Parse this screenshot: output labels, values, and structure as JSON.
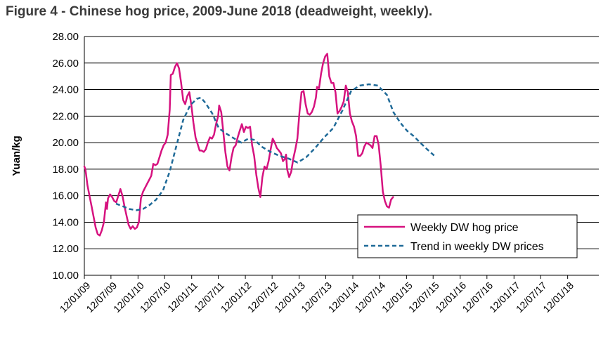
{
  "figure_title": "Figure 4 - Chinese hog price, 2009-June 2018 (deadweight, weekly).",
  "colors": {
    "weekly": "#d6127f",
    "trend": "#1f6a98",
    "grid": "#000000"
  },
  "chart_data": {
    "type": "line",
    "title": "Figure 4 - Chinese hog price, 2009-June 2018 (deadweight, weekly).",
    "ylabel": "Yuan/kg",
    "xlabel": "",
    "ylim": [
      10,
      28
    ],
    "xlim": [
      "12/01/09",
      "12/08/18"
    ],
    "grid": "horizontal",
    "legend_placement": "bottom-right",
    "y_ticks": [
      "10.00",
      "12.00",
      "14.00",
      "16.00",
      "18.00",
      "20.00",
      "22.00",
      "24.00",
      "26.00",
      "28.00"
    ],
    "x_ticks": [
      "12/01/09",
      "12/07/09",
      "12/01/10",
      "12/07/10",
      "12/01/11",
      "12/07/11",
      "12/01/12",
      "12/07/12",
      "12/01/13",
      "12/07/13",
      "12/01/14",
      "12/07/14",
      "12/01/15",
      "12/07/15",
      "12/01/16",
      "12/07/16",
      "12/01/17",
      "12/07/17",
      "12/01/18"
    ],
    "series": [
      {
        "name": "Weekly DW hog price",
        "style": "solid",
        "points": [
          [
            "12/01/09",
            18.2
          ],
          [
            "19/01/09",
            18.0
          ],
          [
            "02/02/09",
            16.8
          ],
          [
            "16/02/09",
            16.0
          ],
          [
            "02/03/09",
            15.2
          ],
          [
            "16/03/09",
            14.4
          ],
          [
            "30/03/09",
            13.6
          ],
          [
            "13/04/09",
            13.1
          ],
          [
            "27/04/09",
            13.0
          ],
          [
            "11/05/09",
            13.4
          ],
          [
            "25/05/09",
            14.0
          ],
          [
            "08/06/09",
            15.5
          ],
          [
            "15/06/09",
            15.0
          ],
          [
            "22/06/09",
            15.8
          ],
          [
            "06/07/09",
            16.1
          ],
          [
            "20/07/09",
            15.9
          ],
          [
            "03/08/09",
            15.6
          ],
          [
            "17/08/09",
            15.5
          ],
          [
            "31/08/09",
            16.0
          ],
          [
            "14/09/09",
            16.5
          ],
          [
            "28/09/09",
            16.0
          ],
          [
            "12/10/09",
            15.2
          ],
          [
            "26/10/09",
            14.5
          ],
          [
            "09/11/09",
            13.8
          ],
          [
            "23/11/09",
            13.5
          ],
          [
            "07/12/09",
            13.7
          ],
          [
            "21/12/09",
            13.5
          ],
          [
            "04/01/10",
            13.6
          ],
          [
            "18/01/10",
            14.0
          ],
          [
            "01/02/10",
            15.8
          ],
          [
            "15/02/10",
            16.3
          ],
          [
            "01/03/10",
            16.6
          ],
          [
            "15/03/10",
            16.9
          ],
          [
            "29/03/10",
            17.2
          ],
          [
            "12/04/10",
            17.5
          ],
          [
            "26/04/10",
            18.4
          ],
          [
            "10/05/10",
            18.3
          ],
          [
            "24/05/10",
            18.4
          ],
          [
            "07/06/10",
            18.9
          ],
          [
            "21/06/10",
            19.4
          ],
          [
            "05/07/10",
            19.8
          ],
          [
            "19/07/10",
            20.0
          ],
          [
            "02/08/10",
            20.6
          ],
          [
            "16/08/10",
            22.5
          ],
          [
            "23/08/10",
            25.1
          ],
          [
            "06/09/10",
            25.2
          ],
          [
            "20/09/10",
            25.7
          ],
          [
            "04/10/10",
            26.0
          ],
          [
            "18/10/10",
            25.6
          ],
          [
            "01/11/10",
            24.5
          ],
          [
            "15/11/10",
            23.2
          ],
          [
            "29/11/10",
            22.9
          ],
          [
            "13/12/10",
            23.5
          ],
          [
            "27/12/10",
            23.8
          ],
          [
            "10/01/11",
            22.8
          ],
          [
            "24/01/11",
            21.5
          ],
          [
            "07/02/11",
            20.4
          ],
          [
            "21/02/11",
            19.9
          ],
          [
            "07/03/11",
            19.4
          ],
          [
            "21/03/11",
            19.4
          ],
          [
            "04/04/11",
            19.3
          ],
          [
            "18/04/11",
            19.5
          ],
          [
            "02/05/11",
            20.0
          ],
          [
            "16/05/11",
            20.4
          ],
          [
            "30/05/11",
            20.3
          ],
          [
            "13/06/11",
            20.6
          ],
          [
            "27/06/11",
            21.4
          ],
          [
            "11/07/11",
            22.0
          ],
          [
            "18/07/11",
            22.8
          ],
          [
            "01/08/11",
            22.3
          ],
          [
            "15/08/11",
            20.8
          ],
          [
            "29/08/11",
            19.3
          ],
          [
            "12/09/11",
            18.2
          ],
          [
            "26/09/11",
            17.9
          ],
          [
            "10/10/11",
            18.9
          ],
          [
            "24/10/11",
            19.6
          ],
          [
            "07/11/11",
            19.8
          ],
          [
            "21/11/11",
            20.4
          ],
          [
            "05/12/11",
            20.9
          ],
          [
            "19/12/11",
            21.4
          ],
          [
            "02/01/12",
            20.8
          ],
          [
            "16/01/12",
            21.2
          ],
          [
            "30/01/12",
            21.1
          ],
          [
            "13/02/12",
            21.2
          ],
          [
            "27/02/12",
            19.8
          ],
          [
            "12/03/12",
            19.0
          ],
          [
            "26/03/12",
            17.6
          ],
          [
            "09/04/12",
            16.6
          ],
          [
            "23/04/12",
            15.9
          ],
          [
            "07/05/12",
            17.4
          ],
          [
            "21/05/12",
            18.2
          ],
          [
            "04/06/12",
            18.0
          ],
          [
            "18/06/12",
            18.6
          ],
          [
            "02/07/12",
            19.5
          ],
          [
            "16/07/12",
            20.3
          ],
          [
            "30/07/12",
            20.0
          ],
          [
            "13/08/12",
            19.6
          ],
          [
            "27/08/12",
            19.4
          ],
          [
            "10/09/12",
            19.2
          ],
          [
            "24/09/12",
            18.6
          ],
          [
            "08/10/12",
            18.8
          ],
          [
            "15/10/12",
            19.1
          ],
          [
            "22/10/12",
            18.0
          ],
          [
            "05/11/12",
            17.4
          ],
          [
            "19/11/12",
            17.8
          ],
          [
            "03/12/12",
            18.8
          ],
          [
            "17/12/12",
            19.5
          ],
          [
            "31/12/12",
            20.3
          ],
          [
            "14/01/13",
            22.3
          ],
          [
            "28/01/13",
            23.8
          ],
          [
            "11/02/13",
            23.9
          ],
          [
            "25/02/13",
            22.9
          ],
          [
            "11/03/13",
            22.2
          ],
          [
            "25/03/13",
            22.1
          ],
          [
            "08/04/13",
            22.3
          ],
          [
            "22/04/13",
            22.7
          ],
          [
            "06/05/13",
            23.4
          ],
          [
            "13/05/13",
            24.2
          ],
          [
            "27/05/13",
            24.1
          ],
          [
            "10/06/13",
            25.2
          ],
          [
            "24/06/13",
            26.0
          ],
          [
            "08/07/13",
            26.5
          ],
          [
            "22/07/13",
            26.7
          ],
          [
            "05/08/13",
            25.0
          ],
          [
            "19/08/13",
            24.5
          ],
          [
            "02/09/13",
            24.5
          ],
          [
            "16/09/13",
            23.8
          ],
          [
            "30/09/13",
            22.2
          ],
          [
            "14/10/13",
            22.4
          ],
          [
            "28/10/13",
            22.7
          ],
          [
            "11/11/13",
            23.1
          ],
          [
            "25/11/13",
            24.3
          ],
          [
            "09/12/13",
            23.8
          ],
          [
            "23/12/13",
            22.2
          ],
          [
            "06/01/14",
            21.6
          ],
          [
            "20/01/14",
            21.2
          ],
          [
            "03/02/14",
            20.5
          ],
          [
            "17/02/14",
            19.0
          ],
          [
            "03/03/14",
            19.0
          ],
          [
            "17/03/14",
            19.2
          ],
          [
            "31/03/14",
            19.7
          ],
          [
            "14/04/14",
            20.0
          ],
          [
            "28/04/14",
            19.9
          ],
          [
            "12/05/14",
            19.8
          ],
          [
            "26/05/14",
            19.6
          ],
          [
            "09/06/14",
            20.5
          ],
          [
            "23/06/14",
            20.5
          ],
          [
            "07/07/14",
            19.8
          ],
          [
            "21/07/14",
            18.2
          ],
          [
            "04/08/14",
            16.3
          ],
          [
            "18/08/14",
            15.6
          ],
          [
            "01/09/14",
            15.2
          ],
          [
            "15/09/14",
            15.1
          ],
          [
            "29/09/14",
            15.7
          ],
          [
            "13/10/14",
            15.9
          ]
        ]
      },
      {
        "name": "Trend in weekly DW prices",
        "style": "dashed",
        "points": [
          [
            "15/08/09",
            15.4
          ],
          [
            "01/10/09",
            15.2
          ],
          [
            "15/11/09",
            15.0
          ],
          [
            "01/01/10",
            14.9
          ],
          [
            "15/02/10",
            15.0
          ],
          [
            "01/04/10",
            15.3
          ],
          [
            "15/05/10",
            15.7
          ],
          [
            "01/07/10",
            16.4
          ],
          [
            "15/08/10",
            17.8
          ],
          [
            "01/10/10",
            19.8
          ],
          [
            "15/11/10",
            21.7
          ],
          [
            "01/01/11",
            22.8
          ],
          [
            "15/02/11",
            23.3
          ],
          [
            "15/03/11",
            23.4
          ],
          [
            "15/04/11",
            23.0
          ],
          [
            "01/06/11",
            22.2
          ],
          [
            "15/07/11",
            21.1
          ],
          [
            "01/09/11",
            20.7
          ],
          [
            "15/10/11",
            20.4
          ],
          [
            "15/12/11",
            20.0
          ],
          [
            "01/02/12",
            20.3
          ],
          [
            "15/03/12",
            20.2
          ],
          [
            "01/05/12",
            19.7
          ],
          [
            "01/07/12",
            19.3
          ],
          [
            "01/09/12",
            19.0
          ],
          [
            "01/11/12",
            18.8
          ],
          [
            "01/01/13",
            18.5
          ],
          [
            "01/03/13",
            18.9
          ],
          [
            "01/05/13",
            19.6
          ],
          [
            "01/07/13",
            20.4
          ],
          [
            "01/09/13",
            21.1
          ],
          [
            "01/11/13",
            22.4
          ],
          [
            "01/01/14",
            23.9
          ],
          [
            "01/03/14",
            24.3
          ],
          [
            "01/05/14",
            24.4
          ],
          [
            "01/07/14",
            24.3
          ],
          [
            "01/09/14",
            23.6
          ],
          [
            "15/10/14",
            22.3
          ],
          [
            "01/12/14",
            21.5
          ],
          [
            "15/01/15",
            20.9
          ],
          [
            "01/03/15",
            20.5
          ],
          [
            "15/04/15",
            20.0
          ],
          [
            "01/06/15",
            19.5
          ],
          [
            "01/08/15",
            18.9
          ]
        ]
      }
    ]
  }
}
